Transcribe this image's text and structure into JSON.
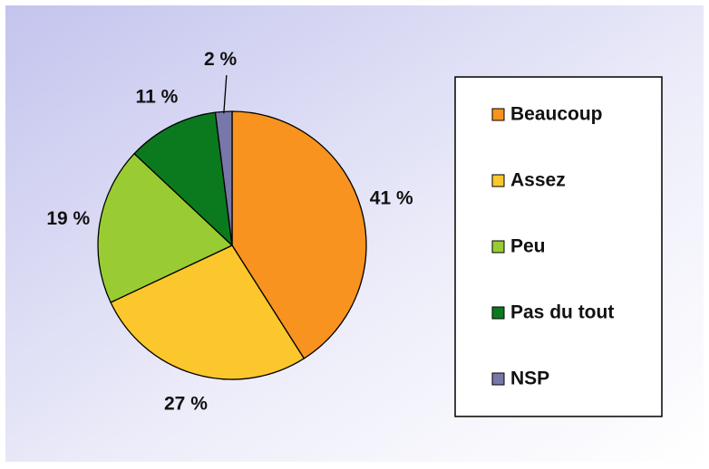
{
  "chart_data": {
    "type": "pie",
    "categories": [
      "Beaucoup",
      "Assez",
      "Peu",
      "Pas du tout",
      "NSP"
    ],
    "values": [
      41,
      27,
      19,
      11,
      2
    ],
    "value_labels": [
      "41 %",
      "27 %",
      "19 %",
      "11 %",
      "2 %"
    ],
    "colors": [
      "#f7931e",
      "#fcc72c",
      "#99cc33",
      "#0b7a1f",
      "#7777aa"
    ],
    "legend": "right"
  }
}
